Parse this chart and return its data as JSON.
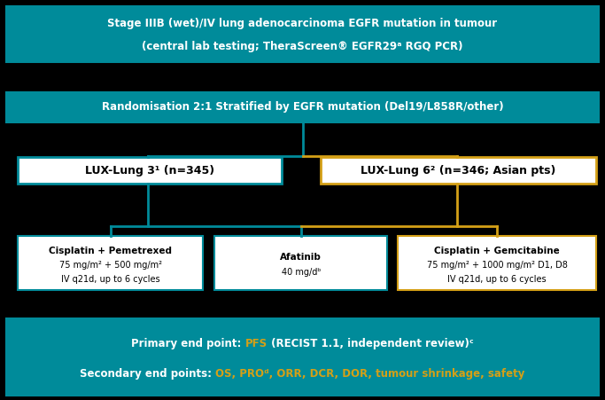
{
  "bg_color": "#000000",
  "teal_color": "#008B9A",
  "gold_color": "#D4A017",
  "white_color": "#FFFFFF",
  "top_box": {
    "text_line1": "Stage IIIB (wet)/IV lung adenocarcinoma EGFR mutation in tumour",
    "text_line2": "(central lab testing; TheraScreen® EGFR29ᵃ RGQ PCR)",
    "bg": "#008B9A",
    "fg": "#FFFFFF"
  },
  "rand_box": {
    "text": "Randomisation 2:1 Stratified by EGFR mutation (Del19/L858R/other)",
    "bg": "#008B9A",
    "fg": "#FFFFFF"
  },
  "lux3_box": {
    "text": "LUX-Lung 3¹ (n=345)",
    "bg": "#FFFFFF",
    "fg": "#000000",
    "border": "#008B9A"
  },
  "lux6_box": {
    "text": "LUX-Lung 6² (n=346; Asian pts)",
    "bg": "#FFFFFF",
    "fg": "#000000",
    "border": "#D4A017"
  },
  "cis_pem_box": {
    "text_line1": "Cisplatin + Pemetrexed",
    "text_line2": "75 mg/m² + 500 mg/m²",
    "text_line3": "IV q21d, up to 6 cycles",
    "bg": "#FFFFFF",
    "fg": "#000000",
    "border": "#008B9A"
  },
  "afatinib_box": {
    "text_line1": "Afatinib",
    "text_line2": "40 mg/dᵇ",
    "bg": "#FFFFFF",
    "fg": "#000000",
    "border": "#008B9A"
  },
  "cis_gem_box": {
    "text_line1": "Cisplatin + Gemcitabine",
    "text_line2": "75 mg/m² + 1000 mg/m² D1, D8",
    "text_line3": "IV q21d, up to 6 cycles",
    "bg": "#FFFFFF",
    "fg": "#000000",
    "border": "#D4A017"
  },
  "bottom_box": {
    "text_primary_pre": "Primary end point: ",
    "text_primary_highlight": "PFS",
    "text_primary_post": " (RECIST 1.1, independent review)ᶜ",
    "text_secondary_pre": "Secondary end points: ",
    "text_secondary_highlight": "OS, PROᵈ, ORR, DCR, DOR, tumour shrinkage, safety",
    "bg": "#008B9A",
    "fg_white": "#FFFFFF",
    "fg_gold": "#D4A017"
  }
}
